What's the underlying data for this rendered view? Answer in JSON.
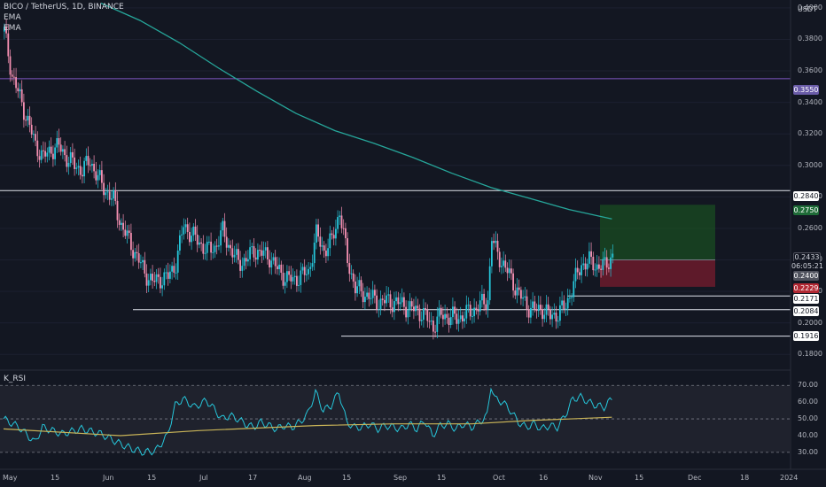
{
  "header": {
    "symbol_line": "BICO / TetherUS, 1D, BINANCE",
    "indicator_1": "EMA",
    "indicator_2": "EMA",
    "currency": "USDT",
    "oscillator_name": "K_RSI"
  },
  "price_axis": {
    "ticks": [
      "0.4000",
      "0.3800",
      "0.3600",
      "0.3400",
      "0.3200",
      "0.3000",
      "0.2800",
      "0.2600",
      "0.2400",
      "0.2200",
      "0.2000",
      "0.1800"
    ],
    "ymin": 0.17,
    "ymax": 0.405
  },
  "rsi_axis": {
    "ticks": [
      "70.00",
      "60.00",
      "50.00",
      "40.00",
      "30.00"
    ],
    "ymin": 22,
    "ymax": 77
  },
  "time_axis": [
    "May",
    "15",
    "Jun",
    "15",
    "Jul",
    "17",
    "Aug",
    "15",
    "Sep",
    "15",
    "Oct",
    "16",
    "Nov",
    "15",
    "Dec",
    "18",
    "2024"
  ],
  "price_tags": {
    "purple_level": "0.3550",
    "upper_level": "0.2840",
    "target": "0.2750",
    "current_price": "0.2433",
    "countdown": "06:05:21",
    "entry": "0.2400",
    "stop": "0.2229",
    "level_a": "0.2171",
    "level_b": "0.2084",
    "level_c": "0.1916"
  },
  "colors": {
    "background": "#131722",
    "up": "#26c6da",
    "down": "#f48fb1",
    "ema": "#26a69a",
    "rsi": "#26c6da",
    "rsi_ma": "#c9b458",
    "purple": "#7e57c2",
    "target_zone": "#1b5e20",
    "stop_zone": "#7f1d2d"
  },
  "chart_data": {
    "type": "candlestick",
    "symbol": "BICO / TetherUS",
    "interval": "1D",
    "horizontal_levels": [
      0.355,
      0.284,
      0.2171,
      0.2084,
      0.1916
    ],
    "position": {
      "entry": 0.24,
      "target": 0.275,
      "stop": 0.2229
    },
    "last_price": 0.2433,
    "close_path": [
      [
        0,
        0.385
      ],
      [
        4,
        0.357
      ],
      [
        8,
        0.343
      ],
      [
        12,
        0.328
      ],
      [
        16,
        0.313
      ],
      [
        20,
        0.305
      ],
      [
        24,
        0.31
      ],
      [
        28,
        0.312
      ],
      [
        32,
        0.305
      ],
      [
        36,
        0.3
      ],
      [
        40,
        0.297
      ],
      [
        44,
        0.303
      ],
      [
        48,
        0.292
      ],
      [
        52,
        0.284
      ],
      [
        56,
        0.278
      ],
      [
        60,
        0.262
      ],
      [
        64,
        0.252
      ],
      [
        68,
        0.242
      ],
      [
        72,
        0.232
      ],
      [
        76,
        0.226
      ],
      [
        80,
        0.228
      ],
      [
        84,
        0.229
      ],
      [
        88,
        0.238
      ],
      [
        92,
        0.262
      ],
      [
        96,
        0.256
      ],
      [
        100,
        0.251
      ],
      [
        104,
        0.246
      ],
      [
        108,
        0.248
      ],
      [
        112,
        0.258
      ],
      [
        116,
        0.247
      ],
      [
        120,
        0.238
      ],
      [
        124,
        0.24
      ],
      [
        128,
        0.246
      ],
      [
        132,
        0.244
      ],
      [
        136,
        0.242
      ],
      [
        140,
        0.234
      ],
      [
        144,
        0.229
      ],
      [
        148,
        0.227
      ],
      [
        152,
        0.23
      ],
      [
        156,
        0.232
      ],
      [
        160,
        0.256
      ],
      [
        164,
        0.246
      ],
      [
        168,
        0.252
      ],
      [
        172,
        0.271
      ],
      [
        176,
        0.24
      ],
      [
        180,
        0.222
      ],
      [
        184,
        0.219
      ],
      [
        188,
        0.216
      ],
      [
        192,
        0.213
      ],
      [
        196,
        0.214
      ],
      [
        200,
        0.213
      ],
      [
        204,
        0.212
      ],
      [
        208,
        0.209
      ],
      [
        212,
        0.208
      ],
      [
        216,
        0.204
      ],
      [
        220,
        0.198
      ],
      [
        224,
        0.205
      ],
      [
        228,
        0.204
      ],
      [
        232,
        0.203
      ],
      [
        236,
        0.205
      ],
      [
        240,
        0.208
      ],
      [
        244,
        0.211
      ],
      [
        248,
        0.215
      ],
      [
        250,
        0.254
      ],
      [
        252,
        0.246
      ],
      [
        256,
        0.237
      ],
      [
        260,
        0.228
      ],
      [
        264,
        0.218
      ],
      [
        268,
        0.211
      ],
      [
        272,
        0.208
      ],
      [
        276,
        0.209
      ],
      [
        280,
        0.204
      ],
      [
        284,
        0.206
      ],
      [
        288,
        0.211
      ],
      [
        292,
        0.225
      ],
      [
        296,
        0.237
      ],
      [
        300,
        0.239
      ],
      [
        304,
        0.236
      ],
      [
        308,
        0.236
      ],
      [
        312,
        0.243
      ]
    ],
    "ema_path": [
      [
        50,
        0.403
      ],
      [
        70,
        0.392
      ],
      [
        90,
        0.378
      ],
      [
        110,
        0.362
      ],
      [
        130,
        0.347
      ],
      [
        150,
        0.333
      ],
      [
        170,
        0.322
      ],
      [
        190,
        0.314
      ],
      [
        210,
        0.305
      ],
      [
        230,
        0.295
      ],
      [
        250,
        0.286
      ],
      [
        270,
        0.279
      ],
      [
        290,
        0.272
      ],
      [
        312,
        0.266
      ]
    ],
    "rsi_path": [
      [
        0,
        50
      ],
      [
        8,
        45
      ],
      [
        16,
        36
      ],
      [
        20,
        45
      ],
      [
        30,
        41
      ],
      [
        40,
        44
      ],
      [
        50,
        41
      ],
      [
        60,
        35
      ],
      [
        66,
        32
      ],
      [
        72,
        30
      ],
      [
        78,
        31
      ],
      [
        84,
        40
      ],
      [
        88,
        58
      ],
      [
        92,
        62
      ],
      [
        98,
        57
      ],
      [
        104,
        61
      ],
      [
        108,
        56
      ],
      [
        112,
        50
      ],
      [
        116,
        52
      ],
      [
        120,
        50
      ],
      [
        124,
        47
      ],
      [
        128,
        45
      ],
      [
        132,
        48
      ],
      [
        136,
        46
      ],
      [
        140,
        44
      ],
      [
        144,
        46
      ],
      [
        148,
        45
      ],
      [
        152,
        48
      ],
      [
        156,
        53
      ],
      [
        160,
        66
      ],
      [
        164,
        55
      ],
      [
        168,
        58
      ],
      [
        172,
        66
      ],
      [
        176,
        48
      ],
      [
        180,
        45
      ],
      [
        184,
        45
      ],
      [
        188,
        47
      ],
      [
        192,
        44
      ],
      [
        196,
        46
      ],
      [
        200,
        45
      ],
      [
        204,
        44
      ],
      [
        208,
        47
      ],
      [
        212,
        44
      ],
      [
        216,
        49
      ],
      [
        220,
        40
      ],
      [
        224,
        46
      ],
      [
        228,
        47
      ],
      [
        232,
        44
      ],
      [
        236,
        47
      ],
      [
        240,
        45
      ],
      [
        244,
        48
      ],
      [
        248,
        52
      ],
      [
        250,
        70
      ],
      [
        252,
        62
      ],
      [
        256,
        60
      ],
      [
        260,
        55
      ],
      [
        264,
        48
      ],
      [
        268,
        45
      ],
      [
        272,
        47
      ],
      [
        276,
        44
      ],
      [
        280,
        46
      ],
      [
        284,
        45
      ],
      [
        288,
        52
      ],
      [
        292,
        62
      ],
      [
        296,
        63
      ],
      [
        300,
        60
      ],
      [
        304,
        58
      ],
      [
        308,
        57
      ],
      [
        312,
        62
      ]
    ],
    "rsi_ma_path": [
      [
        0,
        44
      ],
      [
        60,
        40
      ],
      [
        100,
        43
      ],
      [
        160,
        46
      ],
      [
        200,
        47
      ],
      [
        240,
        47
      ],
      [
        270,
        49
      ],
      [
        312,
        51
      ]
    ],
    "rsi_levels": [
      70,
      50,
      30
    ]
  }
}
